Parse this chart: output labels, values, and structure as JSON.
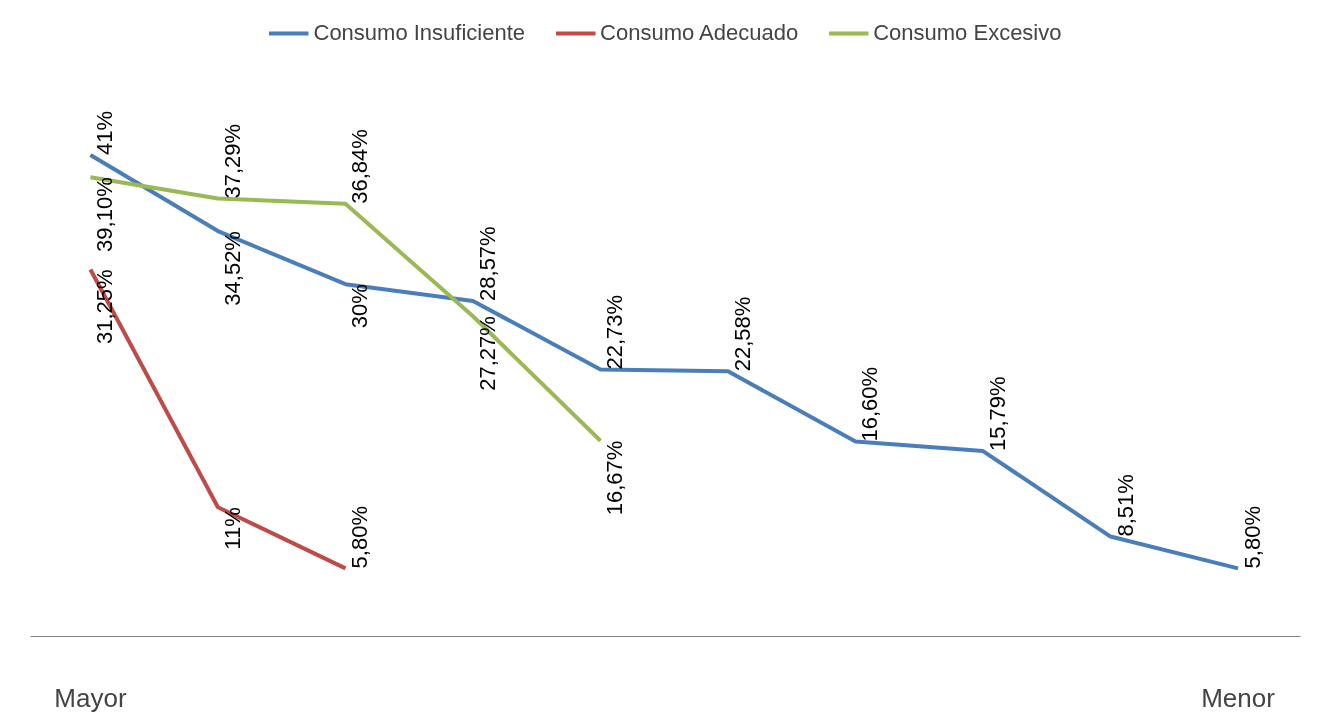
{
  "chart_data": {
    "type": "line",
    "categories": [
      "Mayor",
      null,
      null,
      null,
      null,
      null,
      null,
      null,
      null,
      "Menor"
    ],
    "series": [
      {
        "name": "Consumo Insuficiente",
        "color": "#4a7ebb",
        "values": [
          41,
          34.52,
          30,
          28.57,
          22.73,
          22.58,
          16.6,
          15.79,
          8.51,
          5.8
        ],
        "value_labels": [
          "41%",
          "34,52%",
          "30%",
          "28,57%",
          "22,73%",
          "22,58%",
          "16,60%",
          "15,79%",
          "8,51%",
          "5,80%"
        ]
      },
      {
        "name": "Consumo Adecuado",
        "color": "#be4b48",
        "values": [
          31.25,
          11,
          5.8,
          null,
          null,
          null,
          null,
          null,
          null,
          null
        ],
        "value_labels": [
          "31,25%",
          "11%",
          "5,80%",
          null,
          null,
          null,
          null,
          null,
          null,
          null
        ]
      },
      {
        "name": "Consumo Excesivo",
        "color": "#98b954",
        "values": [
          39.1,
          37.29,
          36.84,
          27.27,
          16.67,
          null,
          null,
          null,
          null,
          null
        ],
        "value_labels": [
          "39,10%",
          "37,29%",
          "36,84%",
          "27,27%",
          "16,67%",
          null,
          null,
          null,
          null,
          null
        ]
      }
    ],
    "legend": "top",
    "grid": false,
    "tick_labels": "x"
  }
}
